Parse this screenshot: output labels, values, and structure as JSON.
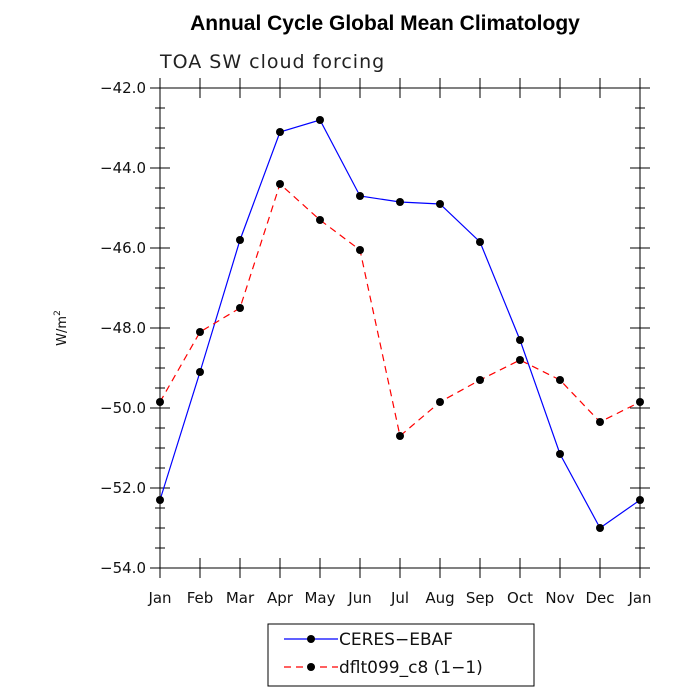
{
  "chart_data": {
    "type": "line",
    "title": "Annual Cycle Global Mean Climatology",
    "subtitle": "TOA SW cloud forcing",
    "xlabel": "",
    "ylabel_base": "W/m",
    "ylabel_exp": "2",
    "categories": [
      "Jan",
      "Feb",
      "Mar",
      "Apr",
      "May",
      "Jun",
      "Jul",
      "Aug",
      "Sep",
      "Oct",
      "Nov",
      "Dec",
      "Jan"
    ],
    "ylim": [
      -54.0,
      -42.0
    ],
    "yticks": [
      -42.0,
      -44.0,
      -46.0,
      -48.0,
      -50.0,
      -52.0,
      -54.0
    ],
    "ytick_labels": [
      "−42.0",
      "−44.0",
      "−46.0",
      "−48.0",
      "−50.0",
      "−52.0",
      "−54.0"
    ],
    "series": [
      {
        "name": "CERES−EBAF",
        "color": "#0000ff",
        "dash": "solid",
        "values": [
          -52.3,
          -49.1,
          -45.8,
          -43.1,
          -42.8,
          -44.7,
          -44.85,
          -44.9,
          -45.85,
          -48.3,
          -51.15,
          -53.0,
          -52.3
        ]
      },
      {
        "name": "dflt099_c8 (1−1)",
        "color": "#ff0000",
        "dash": "dashed",
        "values": [
          -49.85,
          -48.1,
          -47.5,
          -44.4,
          -45.3,
          -46.05,
          -50.7,
          -49.85,
          -49.3,
          -48.8,
          -49.3,
          -50.35,
          -49.85
        ]
      }
    ],
    "marker_color": "#000000",
    "legend_position": "bottom-center"
  }
}
